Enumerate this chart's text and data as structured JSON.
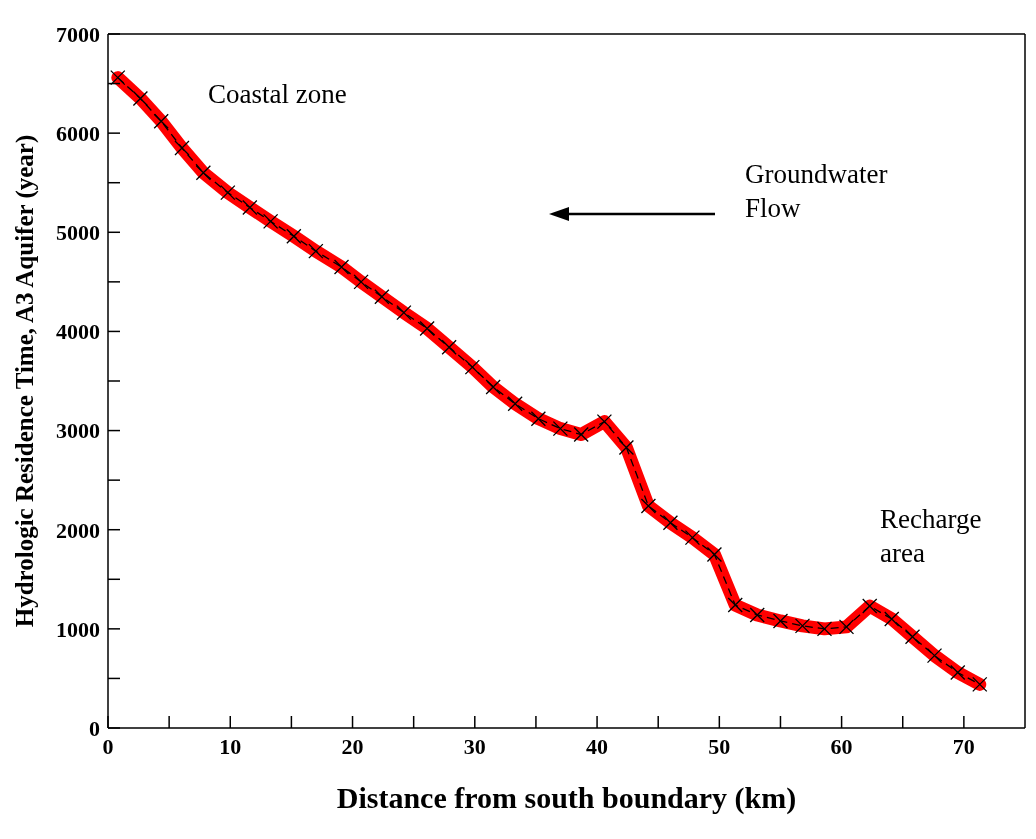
{
  "chart_data": {
    "type": "line",
    "xlabel": "Distance from south boundary (km)",
    "ylabel": "Hydrologic Residence Time, A3 Aquifer (year)",
    "x": [
      0.8,
      2.65,
      4.35,
      6.05,
      7.8,
      9.8,
      11.6,
      13.3,
      15.2,
      17.0,
      19.1,
      20.7,
      22.4,
      24.2,
      26.1,
      27.9,
      29.8,
      31.5,
      33.3,
      35.2,
      37.0,
      38.7,
      40.6,
      42.4,
      44.2,
      46.0,
      47.8,
      49.6,
      51.3,
      53.1,
      55.0,
      56.8,
      58.6,
      60.4,
      62.3,
      64.1,
      65.8,
      67.6,
      69.5,
      71.3
    ],
    "series": [
      {
        "color": "#ff0000",
        "values": [
          6560,
          6350,
          6120,
          5850,
          5600,
          5400,
          5250,
          5110,
          4960,
          4810,
          4650,
          4500,
          4350,
          4190,
          4030,
          3840,
          3640,
          3440,
          3270,
          3120,
          3020,
          2960,
          3090,
          2830,
          2240,
          2070,
          1920,
          1750,
          1240,
          1140,
          1080,
          1030,
          1000,
          1020,
          1230,
          1100,
          920,
          730,
          560,
          440
        ]
      }
    ],
    "xlim": [
      0,
      75
    ],
    "xticks": [
      0,
      {
        "value": 5,
        "label": null
      },
      10,
      {
        "value": 15,
        "label": null
      },
      20,
      {
        "value": 25,
        "label": null
      },
      30,
      {
        "value": 35,
        "label": null
      },
      40,
      {
        "value": 45,
        "label": null
      },
      50,
      {
        "value": 55,
        "label": null
      },
      60,
      {
        "value": 65,
        "label": null
      },
      70
    ],
    "ylim": [
      0,
      7000
    ],
    "yticks": [
      0,
      {
        "value": 500,
        "label": null
      },
      1000,
      {
        "value": 1500,
        "label": null
      },
      2000,
      {
        "value": 2500,
        "label": null
      },
      3000,
      {
        "value": 3500,
        "label": null
      },
      4000,
      {
        "value": 4500,
        "label": null
      },
      5000,
      {
        "value": 5500,
        "label": null
      },
      6000,
      {
        "value": 6500,
        "label": null
      },
      7000
    ],
    "grid": false,
    "marker": "cross",
    "annotations": [
      "Coastal zone",
      "Groundwater Flow",
      "Recharge area"
    ]
  }
}
